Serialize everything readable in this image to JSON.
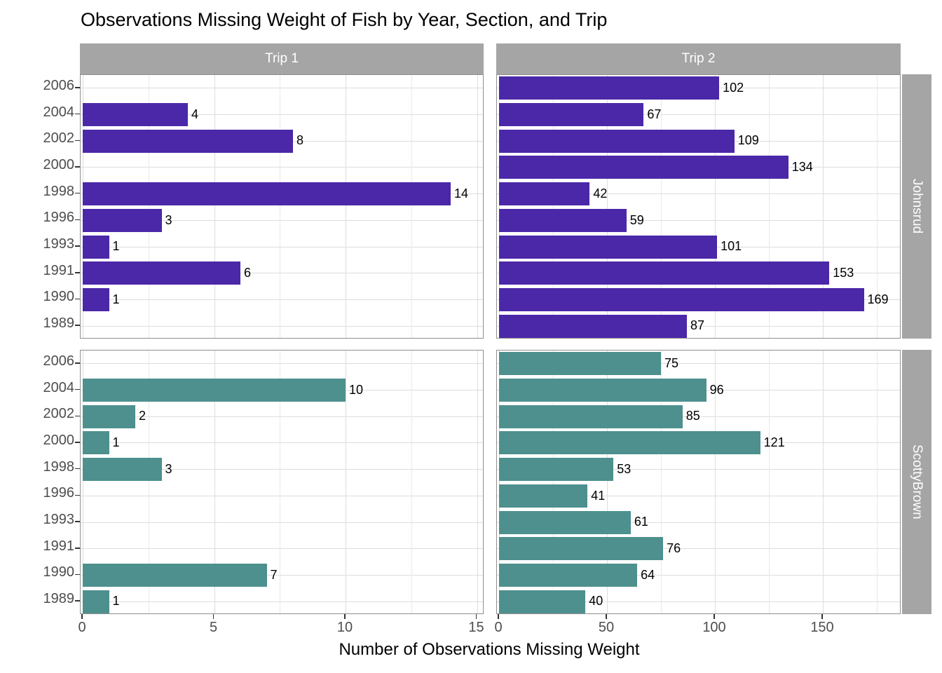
{
  "title": "Observations Missing Weight of Fish by Year, Section, and Trip",
  "x_axis_title": "Number of Observations Missing Weight",
  "colors": {
    "johnsrud_bar": "#4B28A8",
    "scottybrown_bar": "#4D908E",
    "strip_background": "#A5A5A5",
    "strip_text": "#FFFFFF",
    "grid_major": "#DDDDDD",
    "grid_minor": "#E9E9E9",
    "panel_border": "#8F8F8F",
    "axis_text": "#4D4D4D",
    "bar_label_text": "#000000",
    "title_text": "#000000"
  },
  "chart_data": {
    "type": "bar",
    "orientation": "horizontal",
    "title": "Observations Missing Weight of Fish by Year, Section, and Trip",
    "xlabel": "Number of Observations Missing Weight",
    "ylabel": "",
    "grid": "on",
    "legend": "none",
    "facets": {
      "column_labels": [
        "Trip 1",
        "Trip 2"
      ],
      "row_labels": [
        "Johnsrud",
        "ScottyBrown"
      ]
    },
    "categories": [
      "2006",
      "2004",
      "2002",
      "2000",
      "1998",
      "1996",
      "1993",
      "1991",
      "1990",
      "1989"
    ],
    "series": [
      {
        "name": "Johnsrud Trip 1",
        "facet_row": "Johnsrud",
        "facet_col": "Trip 1",
        "color": "#4B28A8",
        "values": [
          0,
          4,
          8,
          0,
          14,
          3,
          1,
          6,
          1,
          0
        ]
      },
      {
        "name": "Johnsrud Trip 2",
        "facet_row": "Johnsrud",
        "facet_col": "Trip 2",
        "color": "#4B28A8",
        "values": [
          102,
          67,
          109,
          134,
          42,
          59,
          101,
          153,
          169,
          87
        ]
      },
      {
        "name": "ScottyBrown Trip 1",
        "facet_row": "ScottyBrown",
        "facet_col": "Trip 1",
        "color": "#4D908E",
        "values": [
          0,
          10,
          2,
          1,
          3,
          0,
          0,
          0,
          7,
          1
        ]
      },
      {
        "name": "ScottyBrown Trip 2",
        "facet_row": "ScottyBrown",
        "facet_col": "Trip 2",
        "color": "#4D908E",
        "values": [
          75,
          96,
          85,
          121,
          53,
          41,
          61,
          76,
          64,
          40
        ]
      }
    ],
    "x_axis": {
      "left_column": {
        "tick_labels": [
          "0",
          "5",
          "10",
          "15"
        ],
        "tick_values": [
          0,
          5,
          10,
          15
        ],
        "minor_values": [
          2.5,
          7.5,
          12.5
        ],
        "xlim": [
          0,
          15.4
        ]
      },
      "right_column": {
        "tick_labels": [
          "0",
          "50",
          "100",
          "150"
        ],
        "tick_values": [
          0,
          50,
          100,
          150
        ],
        "minor_values": [
          25,
          75,
          125,
          175
        ],
        "xlim": [
          0,
          186
        ]
      }
    }
  }
}
